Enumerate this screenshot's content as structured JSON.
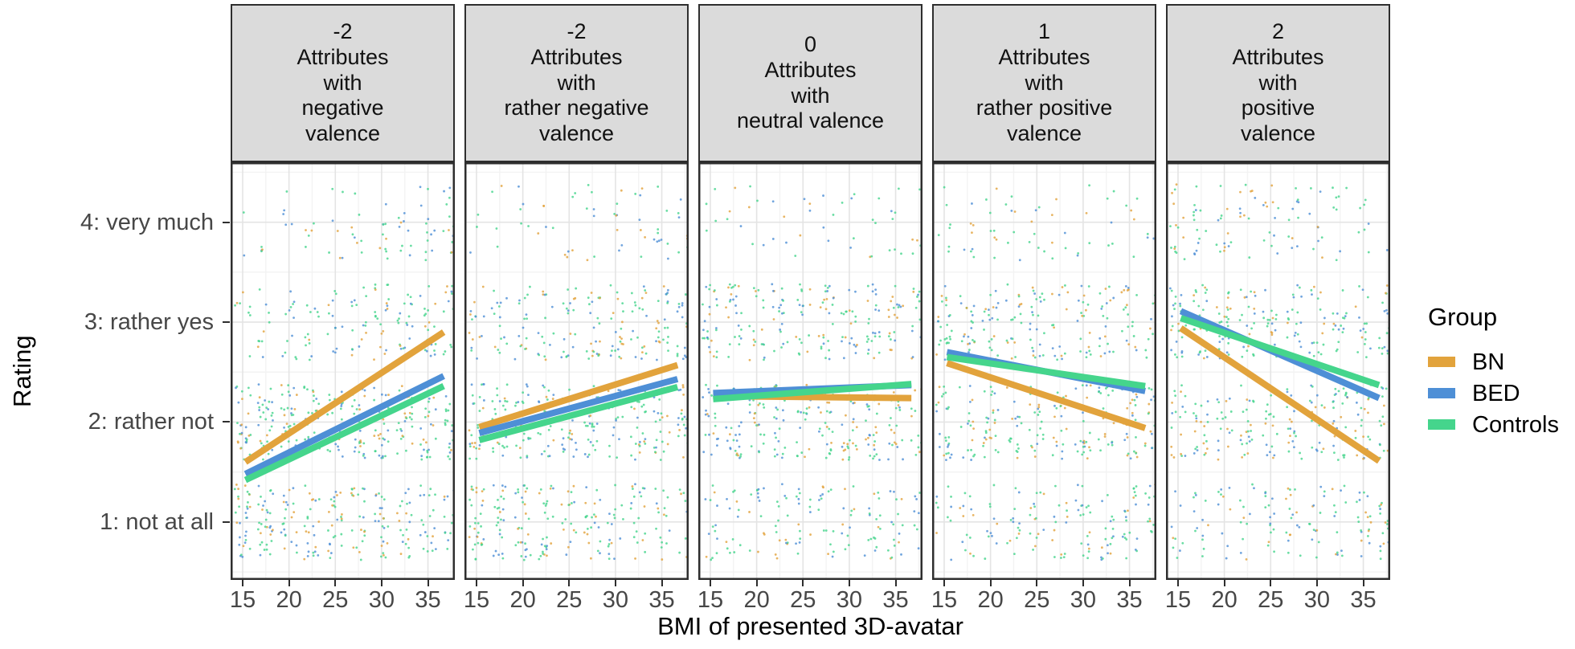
{
  "chart_data": {
    "type": "scatter",
    "description": "Faceted jittered scatter plot with linear trend lines per group",
    "x": {
      "title": "BMI of presented 3D-avatar",
      "ticks": [
        15,
        20,
        25,
        30,
        35
      ],
      "domain": [
        13.7,
        37.9
      ],
      "point_band_values": [
        15,
        17.5,
        20,
        22.5,
        25,
        27.5,
        30,
        32.5,
        35,
        37.5
      ]
    },
    "y": {
      "title": "Rating",
      "ticks": [
        {
          "value": 4,
          "label": "4: very much"
        },
        {
          "value": 3,
          "label": "3: rather yes"
        },
        {
          "value": 2,
          "label": "2: rather not"
        },
        {
          "value": 1,
          "label": "1: not at all"
        }
      ],
      "domain": [
        0.42,
        4.6
      ]
    },
    "legend": {
      "title": "Group",
      "entries": [
        {
          "label": "BN",
          "color": "#E2A33C"
        },
        {
          "label": "BED",
          "color": "#4E8FD6"
        },
        {
          "label": "Controls",
          "color": "#45D58C"
        }
      ]
    },
    "group_mix": {
      "BN": 0.21,
      "BED": 0.27,
      "Controls": 0.52
    },
    "trend_span_bmi": [
      15.3,
      36.7
    ],
    "facets": [
      {
        "header": "-2\nAttributes\nwith\nnegative\nvalence",
        "valence_score": "-2",
        "trend_rating_at_span": {
          "BN": [
            1.6,
            2.9
          ],
          "BED": [
            1.48,
            2.46
          ],
          "Controls": [
            1.42,
            2.36
          ]
        },
        "points_per_band_by_rating": {
          "1": [
            30,
            18
          ],
          "2": [
            28,
            26
          ],
          "3": [
            10,
            22
          ],
          "4": [
            2,
            12
          ]
        }
      },
      {
        "header": "-2\nAttributes\nwith\nrather negative\nvalence",
        "valence_score": "-2",
        "trend_rating_at_span": {
          "BN": [
            1.95,
            2.57
          ],
          "BED": [
            1.89,
            2.43
          ],
          "Controls": [
            1.82,
            2.35
          ]
        },
        "points_per_band_by_rating": {
          "1": [
            26,
            16
          ],
          "2": [
            26,
            24
          ],
          "3": [
            16,
            24
          ],
          "4": [
            3,
            10
          ]
        }
      },
      {
        "header": "0\nAttributes\nwith\nneutral valence",
        "valence_score": "0",
        "trend_rating_at_span": {
          "BN": [
            2.26,
            2.24
          ],
          "BED": [
            2.29,
            2.37
          ],
          "Controls": [
            2.23,
            2.38
          ]
        },
        "points_per_band_by_rating": {
          "1": [
            16,
            14
          ],
          "2": [
            24,
            24
          ],
          "3": [
            22,
            22
          ],
          "4": [
            4,
            6
          ]
        }
      },
      {
        "header": "1\nAttributes\nwith\nrather positive\nvalence",
        "valence_score": "1",
        "trend_rating_at_span": {
          "BN": [
            2.59,
            1.94
          ],
          "BED": [
            2.7,
            2.31
          ],
          "Controls": [
            2.65,
            2.36
          ]
        },
        "points_per_band_by_rating": {
          "1": [
            12,
            18
          ],
          "2": [
            22,
            24
          ],
          "3": [
            24,
            16
          ],
          "4": [
            8,
            4
          ]
        }
      },
      {
        "header": "2\nAttributes\nwith\npositive\nvalence",
        "valence_score": "2",
        "trend_rating_at_span": {
          "BN": [
            2.94,
            1.61
          ],
          "BED": [
            3.11,
            2.24
          ],
          "Controls": [
            3.04,
            2.37
          ]
        },
        "points_per_band_by_rating": {
          "1": [
            10,
            18
          ],
          "2": [
            18,
            26
          ],
          "3": [
            26,
            18
          ],
          "4": [
            14,
            6
          ]
        }
      }
    ],
    "style": {
      "strip_background": "#DBDBDB",
      "panel_border": "#2E2E2E",
      "grid_major": "#E4E4E4",
      "grid_minor": "#F3F3F3",
      "tick_text_color": "#474747",
      "point_alpha": 0.8,
      "point_radius": 1.4,
      "trend_line_width": 8
    }
  }
}
